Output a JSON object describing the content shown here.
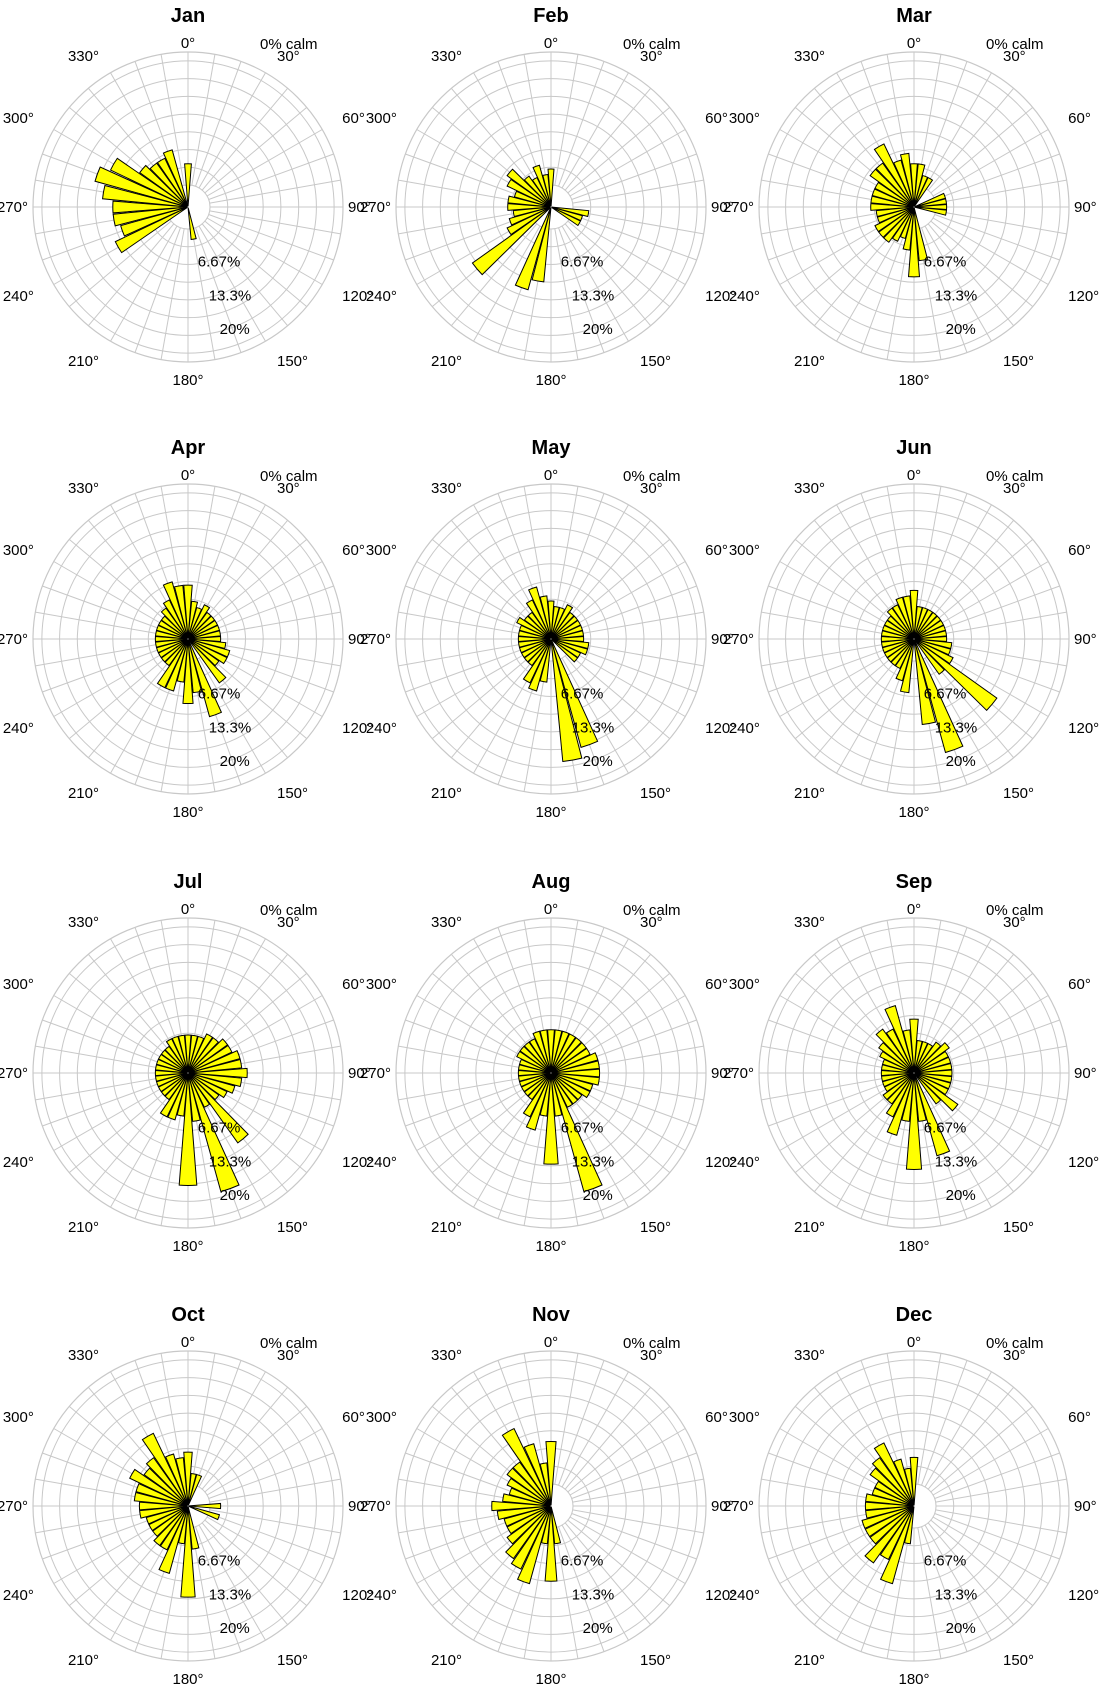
{
  "chart_data": [
    {
      "type": "polar-bar",
      "title": "Jan",
      "calm_label": "0% calm",
      "angle_labels": [
        "0°",
        "30°",
        "60°",
        "90°",
        "120°",
        "150°",
        "180°",
        "210°",
        "240°",
        "270°",
        "300°",
        "330°"
      ],
      "r_labels": [
        "6.67%",
        "13.3%",
        "20%"
      ],
      "rlim": [
        0,
        25
      ],
      "color": "#ffff00",
      "directions": [
        0,
        10,
        20,
        30,
        40,
        50,
        60,
        70,
        80,
        90,
        100,
        110,
        120,
        130,
        140,
        150,
        160,
        170,
        180,
        190,
        200,
        210,
        220,
        230,
        240,
        250,
        260,
        270,
        280,
        290,
        300,
        310,
        320,
        330,
        340,
        350
      ],
      "values": [
        4,
        0,
        0,
        0,
        0,
        0,
        0,
        0,
        0,
        0,
        0,
        0,
        0,
        0,
        0,
        0,
        0,
        2,
        0,
        0,
        0,
        0,
        0,
        0,
        11,
        9,
        10,
        10,
        12,
        14,
        12,
        7,
        6,
        6,
        7,
        0
      ]
    },
    {
      "type": "polar-bar",
      "title": "Feb",
      "calm_label": "0% calm",
      "angle_labels": [
        "0°",
        "30°",
        "60°",
        "90°",
        "120°",
        "150°",
        "180°",
        "210°",
        "240°",
        "270°",
        "300°",
        "330°"
      ],
      "r_labels": [
        "6.67%",
        "13.3%",
        "20%"
      ],
      "rlim": [
        0,
        25
      ],
      "color": "#ffff00",
      "directions": [
        0,
        10,
        20,
        30,
        40,
        50,
        60,
        70,
        80,
        90,
        100,
        110,
        120,
        130,
        140,
        150,
        160,
        170,
        180,
        190,
        200,
        210,
        220,
        230,
        240,
        250,
        260,
        270,
        280,
        290,
        300,
        310,
        320,
        330,
        340,
        350
      ],
      "values": [
        3,
        0,
        0,
        0,
        0,
        0,
        0,
        0,
        0,
        0,
        3,
        2,
        2,
        0,
        0,
        0,
        0,
        0,
        0,
        10,
        12,
        0,
        0,
        14,
        5,
        4,
        3,
        4,
        4,
        3,
        5,
        6,
        3,
        2,
        4,
        2
      ]
    },
    {
      "type": "polar-bar",
      "title": "Mar",
      "calm_label": "0% calm",
      "angle_labels": [
        "0°",
        "30°",
        "60°",
        "90°",
        "120°",
        "150°",
        "180°",
        "210°",
        "240°",
        "270°",
        "300°",
        "330°"
      ],
      "r_labels": [
        "6.67%",
        "13.3%",
        "20%"
      ],
      "rlim": [
        0,
        25
      ],
      "color": "#ffff00",
      "directions": [
        0,
        10,
        20,
        30,
        40,
        50,
        60,
        70,
        80,
        90,
        100,
        110,
        120,
        130,
        140,
        150,
        160,
        170,
        180,
        190,
        200,
        210,
        220,
        230,
        240,
        250,
        260,
        270,
        280,
        290,
        300,
        310,
        320,
        330,
        340,
        350
      ],
      "values": [
        4,
        4,
        2,
        2,
        0,
        0,
        0,
        2,
        2,
        2,
        2,
        0,
        0,
        0,
        0,
        0,
        0,
        6,
        9,
        4,
        2,
        3,
        4,
        4,
        4,
        3,
        3,
        4,
        4,
        4,
        4,
        6,
        6,
        9,
        5,
        6
      ]
    },
    {
      "type": "polar-bar",
      "title": "Apr",
      "calm_label": "0% calm",
      "angle_labels": [
        "0°",
        "30°",
        "60°",
        "90°",
        "120°",
        "150°",
        "180°",
        "210°",
        "240°",
        "270°",
        "300°",
        "330°"
      ],
      "r_labels": [
        "6.67%",
        "13.3%",
        "20%"
      ],
      "rlim": [
        0,
        25
      ],
      "color": "#ffff00",
      "directions": [
        0,
        10,
        20,
        30,
        40,
        50,
        60,
        70,
        80,
        90,
        100,
        110,
        120,
        130,
        140,
        150,
        160,
        170,
        180,
        190,
        200,
        210,
        220,
        230,
        240,
        250,
        260,
        270,
        280,
        290,
        300,
        310,
        320,
        330,
        340,
        350
      ],
      "values": [
        6,
        3,
        2,
        3,
        2,
        2,
        2,
        2,
        2,
        2,
        3,
        4,
        4,
        3,
        6,
        0,
        11,
        6,
        8,
        4,
        6,
        6,
        2,
        2,
        2,
        2,
        2,
        2,
        2,
        2,
        2,
        2,
        3,
        4,
        7,
        6
      ]
    },
    {
      "type": "polar-bar",
      "title": "May",
      "calm_label": "0% calm",
      "angle_labels": [
        "0°",
        "30°",
        "60°",
        "90°",
        "120°",
        "150°",
        "180°",
        "210°",
        "240°",
        "270°",
        "300°",
        "330°"
      ],
      "r_labels": [
        "6.67%",
        "13.3%",
        "20%"
      ],
      "rlim": [
        0,
        25
      ],
      "color": "#ffff00",
      "directions": [
        0,
        10,
        20,
        30,
        40,
        50,
        60,
        70,
        80,
        90,
        100,
        110,
        120,
        130,
        140,
        150,
        160,
        170,
        180,
        190,
        200,
        210,
        220,
        230,
        240,
        250,
        260,
        270,
        280,
        290,
        300,
        310,
        320,
        330,
        340,
        350
      ],
      "values": [
        3,
        2,
        2,
        3,
        2,
        2,
        2,
        2,
        2,
        2,
        3,
        3,
        2,
        2,
        0,
        0,
        17,
        19,
        0,
        4,
        6,
        5,
        2,
        2,
        2,
        2,
        2,
        2,
        2,
        2,
        3,
        2,
        2,
        4,
        6,
        4
      ]
    },
    {
      "type": "polar-bar",
      "title": "Jun",
      "calm_label": "0% calm",
      "angle_labels": [
        "0°",
        "30°",
        "60°",
        "90°",
        "120°",
        "150°",
        "180°",
        "210°",
        "240°",
        "270°",
        "300°",
        "330°"
      ],
      "r_labels": [
        "6.67%",
        "13.3%",
        "20%"
      ],
      "rlim": [
        0,
        25
      ],
      "color": "#ffff00",
      "directions": [
        0,
        10,
        20,
        30,
        40,
        50,
        60,
        70,
        80,
        90,
        100,
        110,
        120,
        130,
        140,
        150,
        160,
        170,
        180,
        190,
        200,
        210,
        220,
        230,
        240,
        250,
        260,
        270,
        280,
        290,
        300,
        310,
        320,
        330,
        340,
        350
      ],
      "values": [
        5,
        2,
        2,
        2,
        2,
        2,
        2,
        2,
        2,
        2,
        3,
        3,
        4,
        15,
        4,
        0,
        18,
        12,
        0,
        6,
        4,
        2,
        2,
        2,
        2,
        2,
        2,
        2,
        2,
        2,
        2,
        2,
        3,
        3,
        4,
        4
      ]
    },
    {
      "type": "polar-bar",
      "title": "Jul",
      "calm_label": "0% calm",
      "angle_labels": [
        "0°",
        "30°",
        "60°",
        "90°",
        "120°",
        "150°",
        "180°",
        "210°",
        "240°",
        "270°",
        "300°",
        "330°"
      ],
      "r_labels": [
        "6.67%",
        "13.3%",
        "20%"
      ],
      "rlim": [
        0,
        25
      ],
      "color": "#ffff00",
      "directions": [
        0,
        10,
        20,
        30,
        40,
        50,
        60,
        70,
        80,
        90,
        100,
        110,
        120,
        130,
        140,
        150,
        160,
        170,
        180,
        190,
        200,
        210,
        220,
        230,
        240,
        250,
        260,
        270,
        280,
        290,
        300,
        310,
        320,
        330,
        340,
        350
      ],
      "values": [
        3,
        3,
        3,
        4,
        4,
        5,
        5,
        6,
        6,
        7,
        6,
        5,
        4,
        3,
        12,
        3,
        19,
        5,
        17,
        4,
        5,
        5,
        2,
        2,
        2,
        2,
        2,
        2,
        2,
        2,
        2,
        2,
        2,
        3,
        3,
        3
      ]
    },
    {
      "type": "polar-bar",
      "title": "Aug",
      "calm_label": "0% calm",
      "angle_labels": [
        "0°",
        "30°",
        "60°",
        "90°",
        "120°",
        "150°",
        "180°",
        "210°",
        "240°",
        "270°",
        "300°",
        "330°"
      ],
      "r_labels": [
        "6.67%",
        "13.3%",
        "20%"
      ],
      "rlim": [
        0,
        25
      ],
      "color": "#ffff00",
      "directions": [
        0,
        10,
        20,
        30,
        40,
        50,
        60,
        70,
        80,
        90,
        100,
        110,
        120,
        130,
        140,
        150,
        160,
        170,
        180,
        190,
        200,
        210,
        220,
        230,
        240,
        250,
        260,
        270,
        280,
        290,
        300,
        310,
        320,
        330,
        340,
        350
      ],
      "values": [
        4,
        4,
        4,
        4,
        4,
        4,
        4,
        5,
        5,
        5,
        5,
        4,
        4,
        3,
        3,
        3,
        19,
        4,
        13,
        4,
        7,
        5,
        2,
        2,
        2,
        2,
        2,
        2,
        2,
        2,
        3,
        3,
        3,
        3,
        4,
        4
      ]
    },
    {
      "type": "polar-bar",
      "title": "Sep",
      "calm_label": "0% calm",
      "angle_labels": [
        "0°",
        "30°",
        "60°",
        "90°",
        "120°",
        "150°",
        "180°",
        "210°",
        "240°",
        "270°",
        "300°",
        "330°"
      ],
      "r_labels": [
        "6.67%",
        "13.3%",
        "20%"
      ],
      "rlim": [
        0,
        25
      ],
      "color": "#ffff00",
      "directions": [
        0,
        10,
        20,
        30,
        40,
        50,
        60,
        70,
        80,
        90,
        100,
        110,
        120,
        130,
        140,
        150,
        160,
        170,
        180,
        190,
        200,
        210,
        220,
        230,
        240,
        250,
        260,
        270,
        280,
        290,
        300,
        310,
        320,
        330,
        340,
        350
      ],
      "values": [
        6,
        2,
        2,
        2,
        3,
        4,
        3,
        3,
        3,
        3,
        3,
        3,
        3,
        6,
        3,
        0,
        12,
        5,
        14,
        5,
        8,
        5,
        3,
        3,
        2,
        2,
        2,
        2,
        2,
        2,
        3,
        4,
        6,
        5,
        9,
        4
      ]
    },
    {
      "type": "polar-bar",
      "title": "Oct",
      "calm_label": "0% calm",
      "angle_labels": [
        "0°",
        "30°",
        "60°",
        "90°",
        "120°",
        "150°",
        "180°",
        "210°",
        "240°",
        "270°",
        "300°",
        "330°"
      ],
      "r_labels": [
        "6.67%",
        "13.3%",
        "20%"
      ],
      "rlim": [
        0,
        25
      ],
      "color": "#ffff00",
      "directions": [
        0,
        10,
        20,
        30,
        40,
        50,
        60,
        70,
        80,
        90,
        100,
        110,
        120,
        130,
        140,
        150,
        160,
        170,
        180,
        190,
        200,
        210,
        220,
        230,
        240,
        250,
        260,
        270,
        280,
        290,
        300,
        310,
        320,
        330,
        340,
        350
      ],
      "values": [
        6,
        2,
        2,
        0,
        0,
        0,
        0,
        0,
        0,
        2,
        0,
        2,
        0,
        0,
        0,
        0,
        0,
        4,
        13,
        3,
        9,
        5,
        5,
        4,
        4,
        4,
        5,
        5,
        6,
        6,
        8,
        6,
        7,
        11,
        6,
        5
      ]
    },
    {
      "type": "polar-bar",
      "title": "Nov",
      "calm_label": "0% calm",
      "angle_labels": [
        "0°",
        "30°",
        "60°",
        "90°",
        "120°",
        "150°",
        "180°",
        "210°",
        "240°",
        "270°",
        "300°",
        "330°"
      ],
      "r_labels": [
        "6.67%",
        "13.3%",
        "20%"
      ],
      "rlim": [
        0,
        25
      ],
      "color": "#ffff00",
      "directions": [
        0,
        10,
        20,
        30,
        40,
        50,
        60,
        70,
        80,
        90,
        100,
        110,
        120,
        130,
        140,
        150,
        160,
        170,
        180,
        190,
        200,
        210,
        220,
        230,
        240,
        250,
        260,
        270,
        280,
        290,
        300,
        310,
        320,
        330,
        340,
        350
      ],
      "values": [
        8,
        0,
        0,
        0,
        0,
        0,
        0,
        0,
        0,
        0,
        0,
        0,
        0,
        0,
        0,
        0,
        0,
        3,
        10,
        3,
        11,
        9,
        8,
        6,
        5,
        5,
        6,
        7,
        5,
        4,
        5,
        6,
        6,
        12,
        8,
        4
      ]
    },
    {
      "type": "polar-bar",
      "title": "Dec",
      "calm_label": "0% calm",
      "angle_labels": [
        "0°",
        "30°",
        "60°",
        "90°",
        "120°",
        "150°",
        "180°",
        "210°",
        "240°",
        "270°",
        "300°",
        "330°"
      ],
      "r_labels": [
        "6.67%",
        "13.3%",
        "20%"
      ],
      "rlim": [
        0,
        25
      ],
      "color": "#ffff00",
      "directions": [
        0,
        10,
        20,
        30,
        40,
        50,
        60,
        70,
        80,
        90,
        100,
        110,
        120,
        130,
        140,
        150,
        160,
        170,
        180,
        190,
        200,
        210,
        220,
        230,
        240,
        250,
        260,
        270,
        280,
        290,
        300,
        310,
        320,
        330,
        340,
        350
      ],
      "values": [
        5,
        0,
        0,
        0,
        0,
        0,
        0,
        0,
        0,
        0,
        0,
        0,
        0,
        0,
        0,
        0,
        0,
        0,
        0,
        3,
        11,
        7,
        9,
        6,
        6,
        6,
        5,
        5,
        5,
        4,
        4,
        6,
        7,
        9,
        5,
        3
      ]
    }
  ]
}
